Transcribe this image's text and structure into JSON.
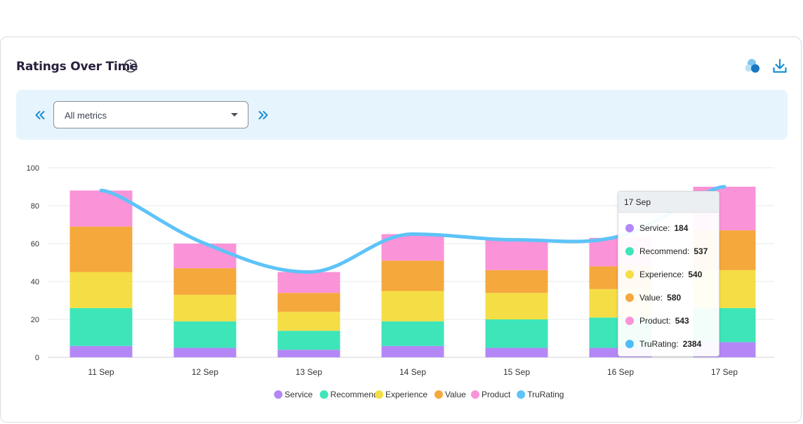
{
  "header": {
    "title": "Ratings Over Time"
  },
  "filter": {
    "selected_metric": "All metrics"
  },
  "tooltip": {
    "title": "17 Sep",
    "rows": [
      {
        "label": "Service:",
        "value": "184",
        "color": "#b388f6"
      },
      {
        "label": "Recommend:",
        "value": "537",
        "color": "#3ee5b8"
      },
      {
        "label": "Experience:",
        "value": "540",
        "color": "#f5dd45"
      },
      {
        "label": "Value:",
        "value": "580",
        "color": "#f5a83c"
      },
      {
        "label": "Product:",
        "value": "543",
        "color": "#fa93d8"
      },
      {
        "label": "TruRating:",
        "value": "2384",
        "color": "#4fbcf7"
      }
    ]
  },
  "chart_data": {
    "type": "bar",
    "stacked": true,
    "title": "Ratings Over Time",
    "categories": [
      "11 Sep",
      "12 Sep",
      "13 Sep",
      "14 Sep",
      "15 Sep",
      "16 Sep",
      "17 Sep"
    ],
    "ylim": [
      0,
      100
    ],
    "yticks": [
      0,
      20,
      40,
      60,
      80,
      100
    ],
    "grid": true,
    "legend_position": "bottom",
    "series": [
      {
        "name": "Service",
        "color": "#b388f6",
        "values": [
          6,
          5,
          4,
          6,
          5,
          5,
          8
        ]
      },
      {
        "name": "Recommend",
        "color": "#3ee5b8",
        "values": [
          20,
          14,
          10,
          13,
          15,
          16,
          18
        ]
      },
      {
        "name": "Experience",
        "color": "#f5dd45",
        "values": [
          19,
          14,
          10,
          16,
          14,
          15,
          20
        ]
      },
      {
        "name": "Value",
        "color": "#f5a83c",
        "values": [
          24,
          14,
          10,
          16,
          12,
          12,
          21
        ]
      },
      {
        "name": "Product",
        "color": "#fa93d8",
        "values": [
          19,
          13,
          11,
          14,
          16,
          15,
          23
        ]
      }
    ],
    "line": {
      "name": "TruRating",
      "color": "#5ec3f8",
      "values": [
        88,
        60,
        45,
        65,
        62,
        64,
        90
      ]
    }
  }
}
